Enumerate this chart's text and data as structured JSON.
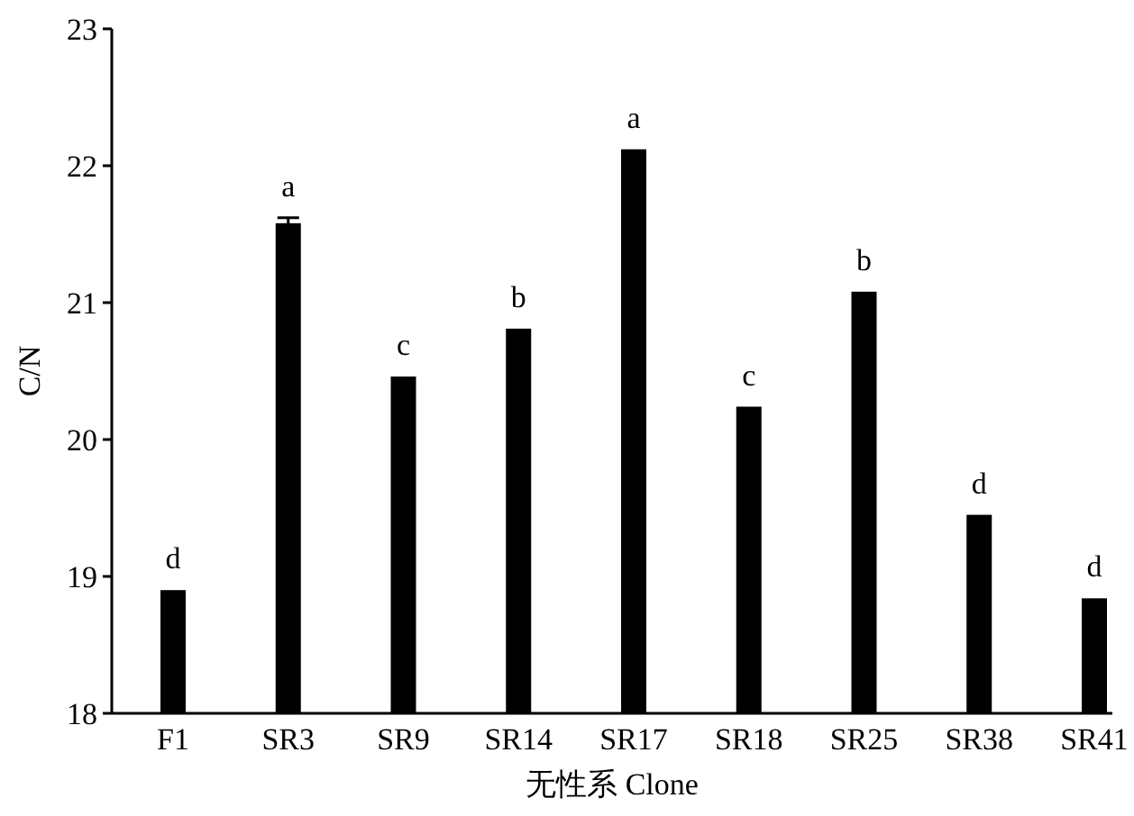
{
  "chart_data": {
    "type": "bar",
    "xlabel": "无性系 Clone",
    "ylabel": "C/N",
    "categories": [
      "F1",
      "SR3",
      "SR9",
      "SR14",
      "SR17",
      "SR18",
      "SR25",
      "SR38",
      "SR41"
    ],
    "values": [
      18.9,
      21.58,
      20.46,
      20.81,
      22.12,
      20.24,
      21.08,
      19.45,
      18.84
    ],
    "errors": [
      null,
      0.04,
      null,
      null,
      null,
      null,
      null,
      null,
      null
    ],
    "color": "#000000",
    "ylim": [
      18,
      23
    ],
    "yticks": [
      18,
      19,
      20,
      21,
      22,
      23
    ],
    "grid": false,
    "annotations": [
      {
        "text": "d",
        "x": "F1",
        "y": 18.9
      },
      {
        "text": "a",
        "x": "SR3",
        "y": 21.62
      },
      {
        "text": "c",
        "x": "SR9",
        "y": 20.46
      },
      {
        "text": "b",
        "x": "SR14",
        "y": 20.81
      },
      {
        "text": "a",
        "x": "SR17",
        "y": 22.12
      },
      {
        "text": "c",
        "x": "SR18",
        "y": 20.24
      },
      {
        "text": "b",
        "x": "SR25",
        "y": 21.08
      },
      {
        "text": "d",
        "x": "SR38",
        "y": 19.45
      },
      {
        "text": "d",
        "x": "SR41",
        "y": 18.84
      }
    ]
  }
}
